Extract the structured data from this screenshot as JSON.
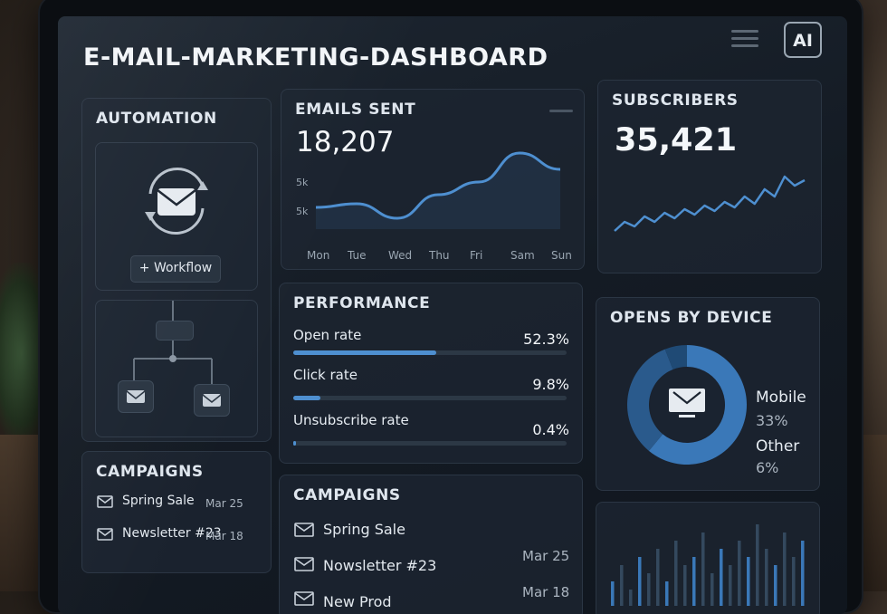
{
  "header": {
    "title": "E-MAIL-MARKETING-DASHBOARD",
    "ai_label": "AI"
  },
  "automation": {
    "title": "AUTOMATION",
    "workflow_button": "Workflow",
    "workflow_plus": "+"
  },
  "campaigns_small": {
    "title": "CAMPAIGNS",
    "items": [
      {
        "name": "Spring Sale",
        "date": "Mar 25"
      },
      {
        "name": "Newsletter #23",
        "date": "Mar 18"
      }
    ]
  },
  "emails_sent": {
    "title": "EMAILS SENT",
    "value": "18,207",
    "y_ticks": [
      "5k",
      "5k"
    ],
    "chart_data": {
      "type": "line",
      "categories": [
        "Mon",
        "Tue",
        "Wed",
        "Thu",
        "Fri",
        "Sam",
        "Sun"
      ],
      "values": [
        4.2,
        4.4,
        3.6,
        4.9,
        5.6,
        7.2,
        6.3
      ],
      "color": "#4e8fd0"
    }
  },
  "subscribers": {
    "title": "SUBSCRIBERS",
    "value": "35,421",
    "chart_data": {
      "type": "line",
      "values": [
        2,
        3,
        2.5,
        3.6,
        3,
        4,
        3.4,
        4.4,
        3.8,
        4.8,
        4.2,
        5.2,
        4.6,
        5.8,
        5,
        6.6,
        5.8,
        8,
        7,
        7.6
      ],
      "color": "#4e8fd0"
    }
  },
  "performance": {
    "title": "PERFORMANCE",
    "metrics": [
      {
        "label": "Open rate",
        "value": "52.3%",
        "fraction": 0.523
      },
      {
        "label": "Click rate",
        "value": "9.8%",
        "fraction": 0.098
      },
      {
        "label": "Unsubscribe rate",
        "value": "0.4%",
        "fraction": 0.004
      }
    ]
  },
  "opens_by_device": {
    "title": "OPENS BY DEVICE",
    "legend": [
      {
        "label": "Mobile",
        "pct": "33%"
      },
      {
        "label": "Other",
        "pct": "6%"
      }
    ],
    "chart_data": {
      "type": "pie",
      "values": [
        61,
        33,
        6
      ],
      "colors": [
        "#3a78b8",
        "#2a5a8c",
        "#1f4a75"
      ]
    }
  },
  "campaigns_large": {
    "title": "CAMPAIGNS",
    "items": [
      {
        "name": "Spring Sale",
        "date": "Mar 25"
      },
      {
        "name": "Nowsletter #23",
        "date": "Mar 18"
      },
      {
        "name": "New Prod",
        "date": ""
      }
    ]
  },
  "mini_bars": {
    "chart_data": {
      "type": "bar",
      "values": [
        3,
        5,
        2,
        6,
        4,
        7,
        3,
        8,
        5,
        6,
        9,
        4,
        7,
        5,
        8,
        6,
        10,
        7,
        5,
        9,
        6,
        8
      ]
    }
  }
}
